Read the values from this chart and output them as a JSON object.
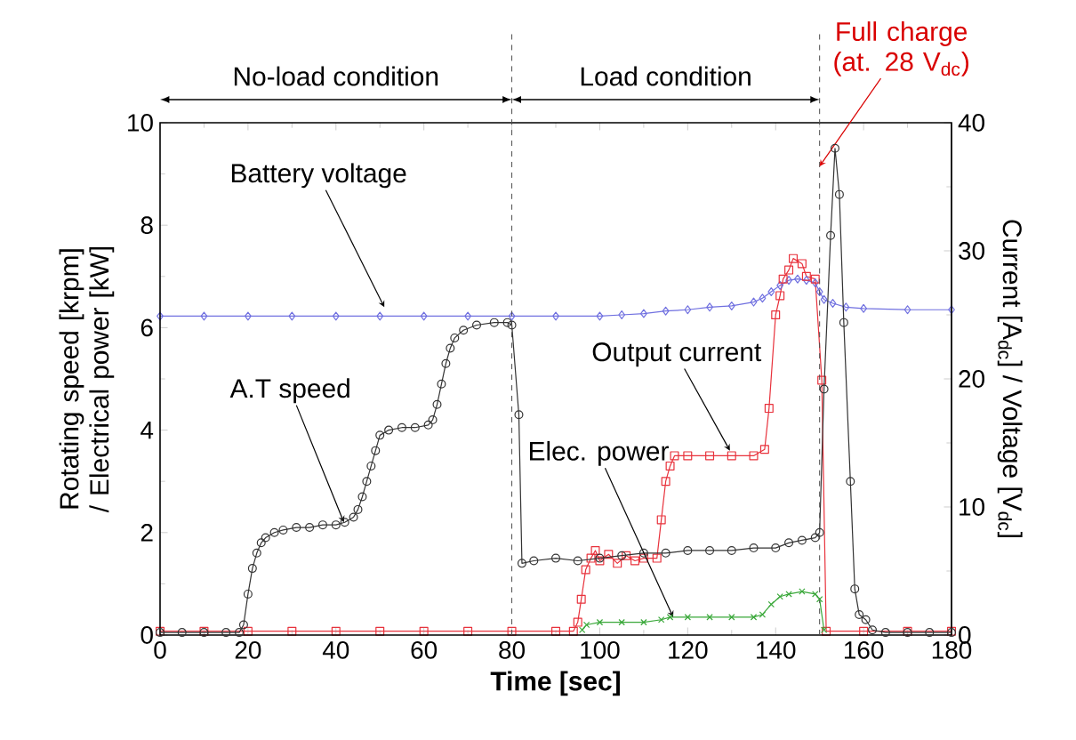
{
  "chart_data": {
    "type": "line",
    "xlabel": "Time [sec]",
    "ylabel": "Rotating speed [krpm] / Electrical power [kW]",
    "y2label": "Current [A$_{dc}$] / Voltage [V$_{dc}$]",
    "xlim": [
      0,
      180
    ],
    "ylim": [
      0,
      10
    ],
    "y2lim": [
      0,
      40
    ],
    "xticks": [
      0,
      20,
      40,
      60,
      80,
      100,
      120,
      140,
      160,
      180
    ],
    "yticks": [
      0,
      2,
      4,
      6,
      8,
      10
    ],
    "y2ticks": [
      0,
      10,
      20,
      30,
      40
    ],
    "series": [
      {
        "color": "#7070e0",
        "marker": "diamond",
        "axis": "y2",
        "x": [
          0,
          10,
          20,
          30,
          40,
          50,
          60,
          70,
          80,
          90,
          100,
          105,
          110,
          115,
          120,
          125,
          130,
          135,
          137,
          139,
          141,
          143,
          145,
          147,
          149,
          150,
          151,
          153,
          156,
          160,
          170,
          180
        ],
        "values": [
          24.9,
          24.9,
          24.9,
          24.9,
          24.9,
          24.9,
          24.9,
          24.9,
          24.9,
          24.9,
          24.9,
          25.0,
          25.1,
          25.3,
          25.4,
          25.6,
          25.7,
          26.0,
          26.3,
          26.8,
          27.3,
          27.7,
          27.8,
          27.7,
          27.5,
          26.8,
          26.2,
          25.9,
          25.6,
          25.5,
          25.4,
          25.4
        ]
      },
      {
        "color": "#333333",
        "marker": "circle",
        "x": [
          0,
          5,
          10,
          15,
          18,
          19,
          20,
          21,
          22,
          23,
          24,
          26,
          28,
          31,
          34,
          37,
          40,
          42,
          44,
          45,
          46,
          47,
          48,
          49,
          50,
          52,
          55,
          58,
          61,
          62,
          63,
          64,
          65,
          66,
          67,
          69,
          72,
          76,
          79,
          80,
          81.6,
          82.3,
          85,
          90,
          95,
          100,
          105,
          110,
          115,
          120,
          125,
          130,
          135,
          140,
          143,
          146,
          149,
          150,
          151,
          152.5,
          153.5,
          154.5,
          155.5,
          157,
          158,
          159,
          160.5,
          162,
          165,
          170,
          175,
          180
        ],
        "values": [
          0.05,
          0.05,
          0.05,
          0.05,
          0.05,
          0.2,
          0.8,
          1.3,
          1.6,
          1.8,
          1.9,
          2.0,
          2.05,
          2.1,
          2.1,
          2.15,
          2.15,
          2.2,
          2.3,
          2.45,
          2.7,
          3.0,
          3.3,
          3.6,
          3.9,
          4.0,
          4.05,
          4.05,
          4.1,
          4.2,
          4.5,
          4.9,
          5.3,
          5.6,
          5.8,
          5.95,
          6.05,
          6.1,
          6.1,
          6.05,
          4.3,
          1.4,
          1.45,
          1.5,
          1.45,
          1.5,
          1.55,
          1.6,
          1.6,
          1.65,
          1.65,
          1.65,
          1.7,
          1.7,
          1.8,
          1.85,
          1.9,
          2.0,
          4.8,
          7.8,
          9.5,
          8.6,
          6.1,
          3.0,
          0.9,
          0.4,
          0.3,
          0.1,
          0.05,
          0.05,
          0.05,
          0.05
        ]
      },
      {
        "color": "#3aa83a",
        "marker": "cross",
        "x": [
          96,
          97,
          100,
          105,
          110,
          114,
          116,
          120,
          125,
          130,
          135,
          137,
          139,
          141,
          143,
          146,
          149,
          150,
          151
        ],
        "values": [
          0.1,
          0.2,
          0.25,
          0.25,
          0.25,
          0.3,
          0.35,
          0.35,
          0.35,
          0.35,
          0.35,
          0.4,
          0.6,
          0.75,
          0.8,
          0.85,
          0.8,
          0.7,
          0.1
        ]
      },
      {
        "color": "#e8323c",
        "marker": "square",
        "axis": "y2",
        "x": [
          0,
          10,
          20,
          30,
          40,
          50,
          60,
          70,
          80,
          90,
          94,
          95,
          95.8,
          96.8,
          98,
          99,
          100,
          102,
          104,
          106,
          108,
          110,
          113,
          114,
          115,
          116,
          117,
          120,
          125,
          130,
          135,
          137.5,
          138.5,
          140,
          141,
          141.7,
          143,
          144,
          146,
          147,
          149,
          150.5,
          151.5,
          160,
          170,
          180
        ],
        "values": [
          0.3,
          0.3,
          0.3,
          0.3,
          0.3,
          0.3,
          0.3,
          0.3,
          0.3,
          0.3,
          0.3,
          1.0,
          2.8,
          5.1,
          6.0,
          6.6,
          5.8,
          6.3,
          5.6,
          6.2,
          5.8,
          6.0,
          6.0,
          9.0,
          12.0,
          13.2,
          14.0,
          14.0,
          14.0,
          14.0,
          14.0,
          14.5,
          17.7,
          25.0,
          26.5,
          27.8,
          28.5,
          29.4,
          29.0,
          28.0,
          27.8,
          19.9,
          0.3,
          0.3,
          0.3,
          0.3
        ]
      }
    ],
    "ref_lines": [
      {
        "axis": "x",
        "value": 80,
        "line_style": "dashed"
      },
      {
        "axis": "x",
        "value": 150,
        "line_style": "dashed"
      }
    ],
    "annotations": [
      "No-load condition",
      "Load condition",
      {
        "text": "Battery voltage",
        "x": 51,
        "y": 6.4
      },
      {
        "text": "A.T speed",
        "x": 41.8,
        "y": 2.2
      },
      {
        "text": "Output current",
        "x": 129.6,
        "y": 3.6
      },
      {
        "text": "Elec. power",
        "x": 116.7,
        "y": 0.35
      },
      {
        "text": "Full charge (at. 28 V$_{dc}$)",
        "x": 150,
        "y": 9.15
      }
    ]
  }
}
